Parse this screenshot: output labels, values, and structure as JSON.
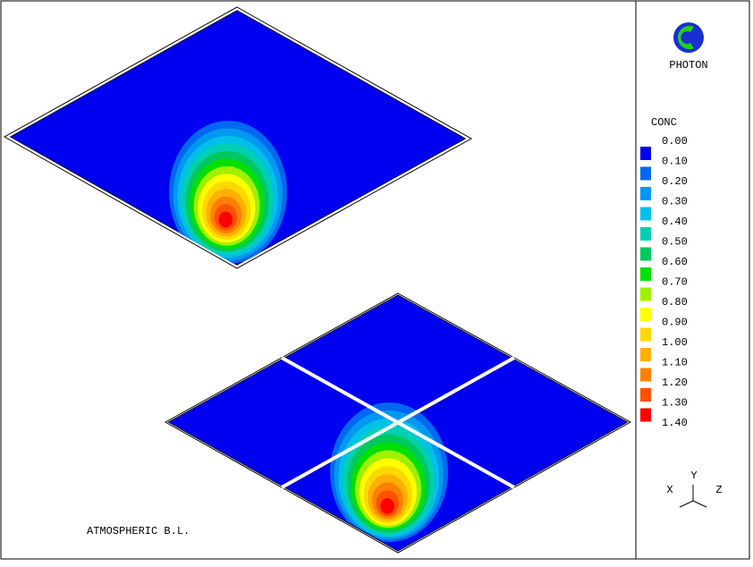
{
  "logo": {
    "text": "PHOTON"
  },
  "legend": {
    "title": "CONC",
    "labels": [
      "0.00",
      "0.10",
      "0.20",
      "0.30",
      "0.40",
      "0.50",
      "0.60",
      "0.70",
      "0.80",
      "0.90",
      "1.00",
      "1.10",
      "1.20",
      "1.30",
      "1.40"
    ],
    "colors": [
      "#0000f0",
      "#0068f0",
      "#0098f0",
      "#00c0e8",
      "#00d0b0",
      "#00c860",
      "#00e000",
      "#a0f000",
      "#ffff00",
      "#ffd800",
      "#ffb000",
      "#ff8000",
      "#ff5000",
      "#ff0000"
    ]
  },
  "axes": {
    "x": "X",
    "y": "Y",
    "z": "Z"
  },
  "caption": "ATMOSPHERIC B.L."
}
